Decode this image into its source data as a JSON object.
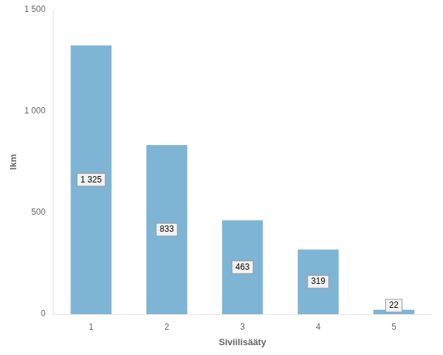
{
  "chart_data": {
    "type": "bar",
    "xlabel": "Siviilisääty",
    "ylabel": "lkm",
    "categories": [
      "1",
      "2",
      "3",
      "4",
      "5"
    ],
    "values": [
      1325,
      833,
      463,
      319,
      22
    ],
    "value_labels": [
      "1 325",
      "833",
      "463",
      "319",
      "22"
    ],
    "data_labels": true,
    "color": "#7EB4D4",
    "ylim": [
      0,
      1500
    ],
    "yticks": [
      0,
      500,
      {
        "value": 1000,
        "label": "1 000"
      },
      {
        "value": 1500,
        "label": "1 500"
      }
    ],
    "grid": false
  }
}
